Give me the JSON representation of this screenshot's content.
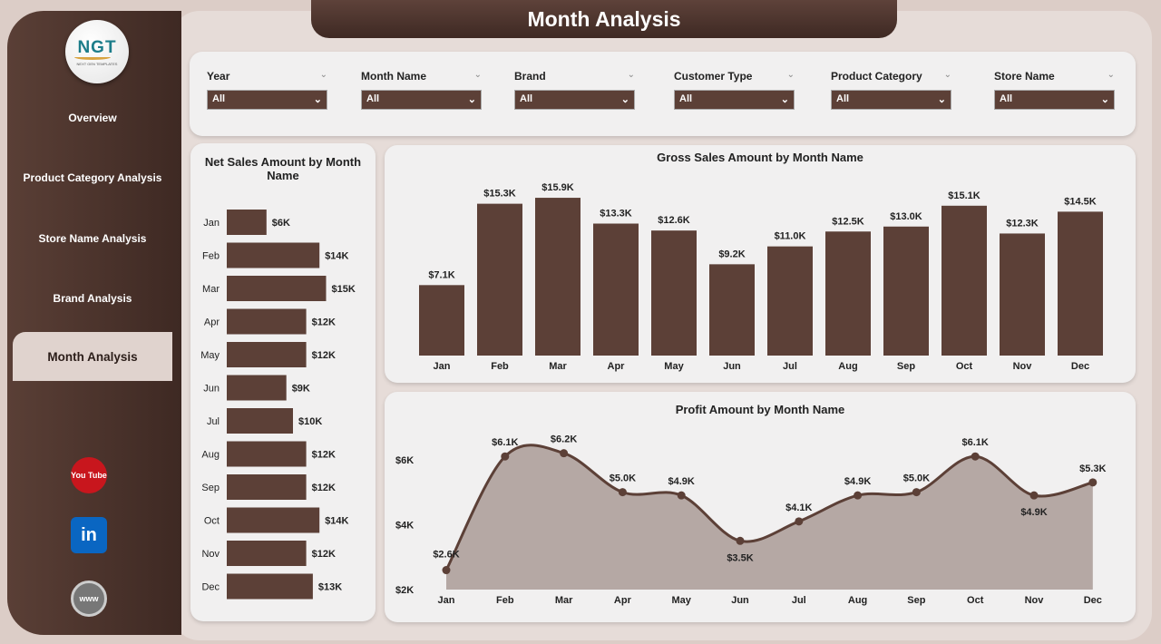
{
  "header": {
    "title": "Month Analysis"
  },
  "logo": {
    "text": "NGT",
    "subtitle": "NEXT GEN TEMPLATES"
  },
  "sidebar": {
    "items": [
      {
        "label": "Overview"
      },
      {
        "label": "Product Category Analysis"
      },
      {
        "label": "Store Name Analysis"
      },
      {
        "label": "Brand Analysis"
      },
      {
        "label": "Month Analysis",
        "active": true
      }
    ],
    "social": [
      {
        "icon": "youtube-icon",
        "label": "You Tube"
      },
      {
        "icon": "linkedin-icon",
        "label": "in"
      },
      {
        "icon": "globe-icon",
        "label": "www"
      }
    ]
  },
  "filters": [
    {
      "label": "Year",
      "value": "All"
    },
    {
      "label": "Month Name",
      "value": "All"
    },
    {
      "label": "Brand",
      "value": "All"
    },
    {
      "label": "Customer Type",
      "value": "All"
    },
    {
      "label": "Product Category",
      "value": "All"
    },
    {
      "label": "Store Name",
      "value": "All"
    }
  ],
  "colors": {
    "brown": "#5c4037",
    "area": "#b5a8a4"
  },
  "chart_data": [
    {
      "type": "bar",
      "orientation": "horizontal",
      "title": "Net Sales Amount by Month Name",
      "categories": [
        "Jan",
        "Feb",
        "Mar",
        "Apr",
        "May",
        "Jun",
        "Jul",
        "Aug",
        "Sep",
        "Oct",
        "Nov",
        "Dec"
      ],
      "values": [
        6,
        14,
        15,
        12,
        12,
        9,
        10,
        12,
        12,
        14,
        12,
        13
      ],
      "labels": [
        "$6K",
        "$14K",
        "$15K",
        "$12K",
        "$12K",
        "$9K",
        "$10K",
        "$12K",
        "$12K",
        "$14K",
        "$12K",
        "$13K"
      ]
    },
    {
      "type": "bar",
      "title": "Gross Sales Amount by Month Name",
      "categories": [
        "Jan",
        "Feb",
        "Mar",
        "Apr",
        "May",
        "Jun",
        "Jul",
        "Aug",
        "Sep",
        "Oct",
        "Nov",
        "Dec"
      ],
      "values": [
        7.1,
        15.3,
        15.9,
        13.3,
        12.6,
        9.2,
        11.0,
        12.5,
        13.0,
        15.1,
        12.3,
        14.5
      ],
      "labels": [
        "$7.1K",
        "$15.3K",
        "$15.9K",
        "$13.3K",
        "$12.6K",
        "$9.2K",
        "$11.0K",
        "$12.5K",
        "$13.0K",
        "$15.1K",
        "$12.3K",
        "$14.5K"
      ]
    },
    {
      "type": "area",
      "title": "Profit Amount by Month Name",
      "categories": [
        "Jan",
        "Feb",
        "Mar",
        "Apr",
        "May",
        "Jun",
        "Jul",
        "Aug",
        "Sep",
        "Oct",
        "Nov",
        "Dec"
      ],
      "values": [
        2.6,
        6.1,
        6.2,
        5.0,
        4.9,
        3.5,
        4.1,
        4.9,
        5.0,
        6.1,
        4.9,
        5.3
      ],
      "labels": [
        "$2.6K",
        "$6.1K",
        "$6.2K",
        "$5.0K",
        "$4.9K",
        "$3.5K",
        "$4.1K",
        "$4.9K",
        "$5.0K",
        "$6.1K",
        "$4.9K",
        "$5.3K"
      ],
      "yticks": [
        "$2K",
        "$4K",
        "$6K"
      ],
      "ytick_values": [
        2,
        4,
        6
      ],
      "ylim": [
        2,
        6.6
      ]
    }
  ]
}
